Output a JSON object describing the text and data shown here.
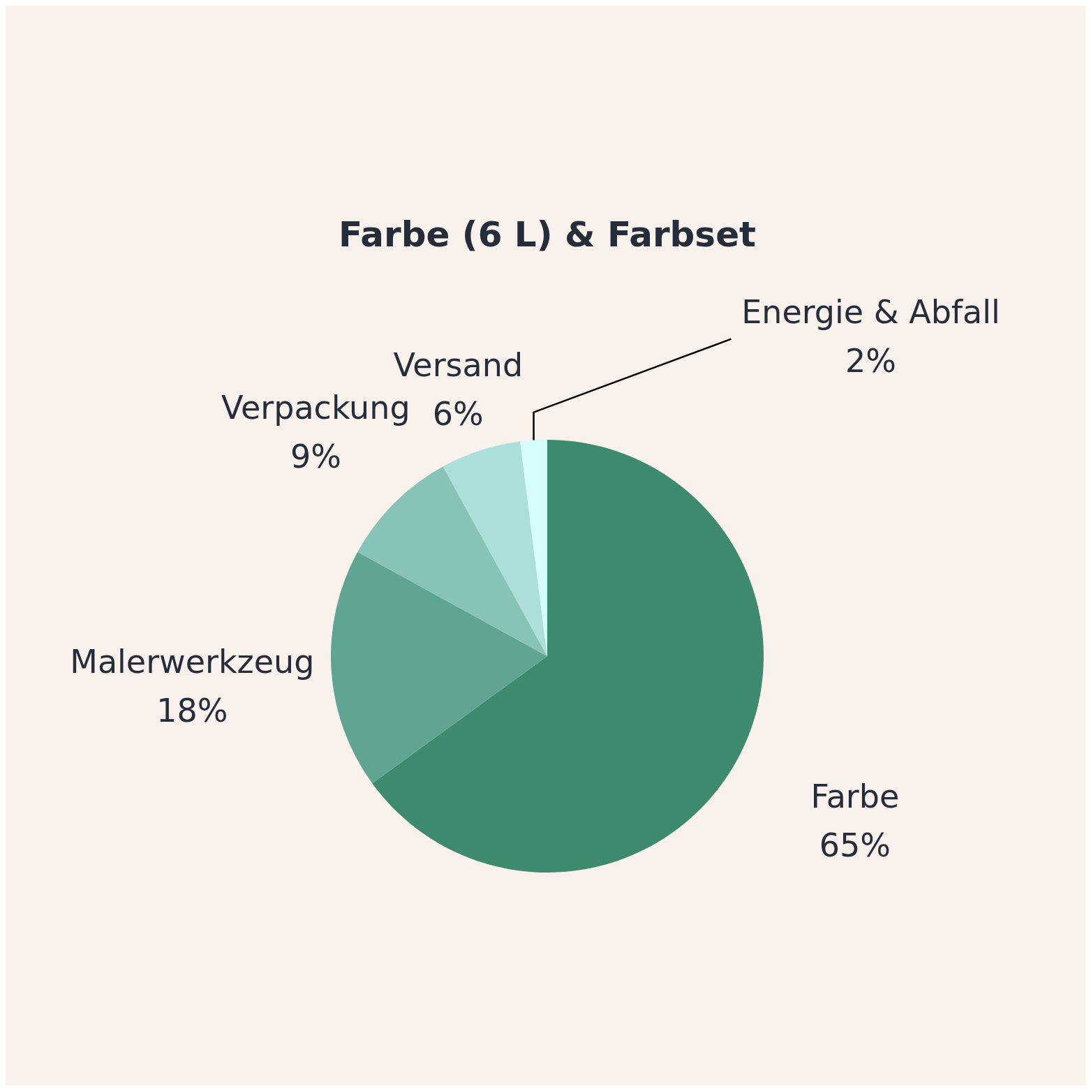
{
  "chart_data": {
    "type": "pie",
    "title": "Farbe (6 L) & Farbset",
    "categories": [
      "Farbe",
      "Malerwerkzeug",
      "Verpackung",
      "Versand",
      "Energie & Abfall"
    ],
    "values": [
      65,
      18,
      9,
      6,
      2
    ],
    "value_labels": [
      "65%",
      "18%",
      "9%",
      "6%",
      "2%"
    ],
    "colors": [
      "#3d8a6e",
      "#60a591",
      "#88c3b7",
      "#acdfd9",
      "#d4fdfb"
    ]
  }
}
